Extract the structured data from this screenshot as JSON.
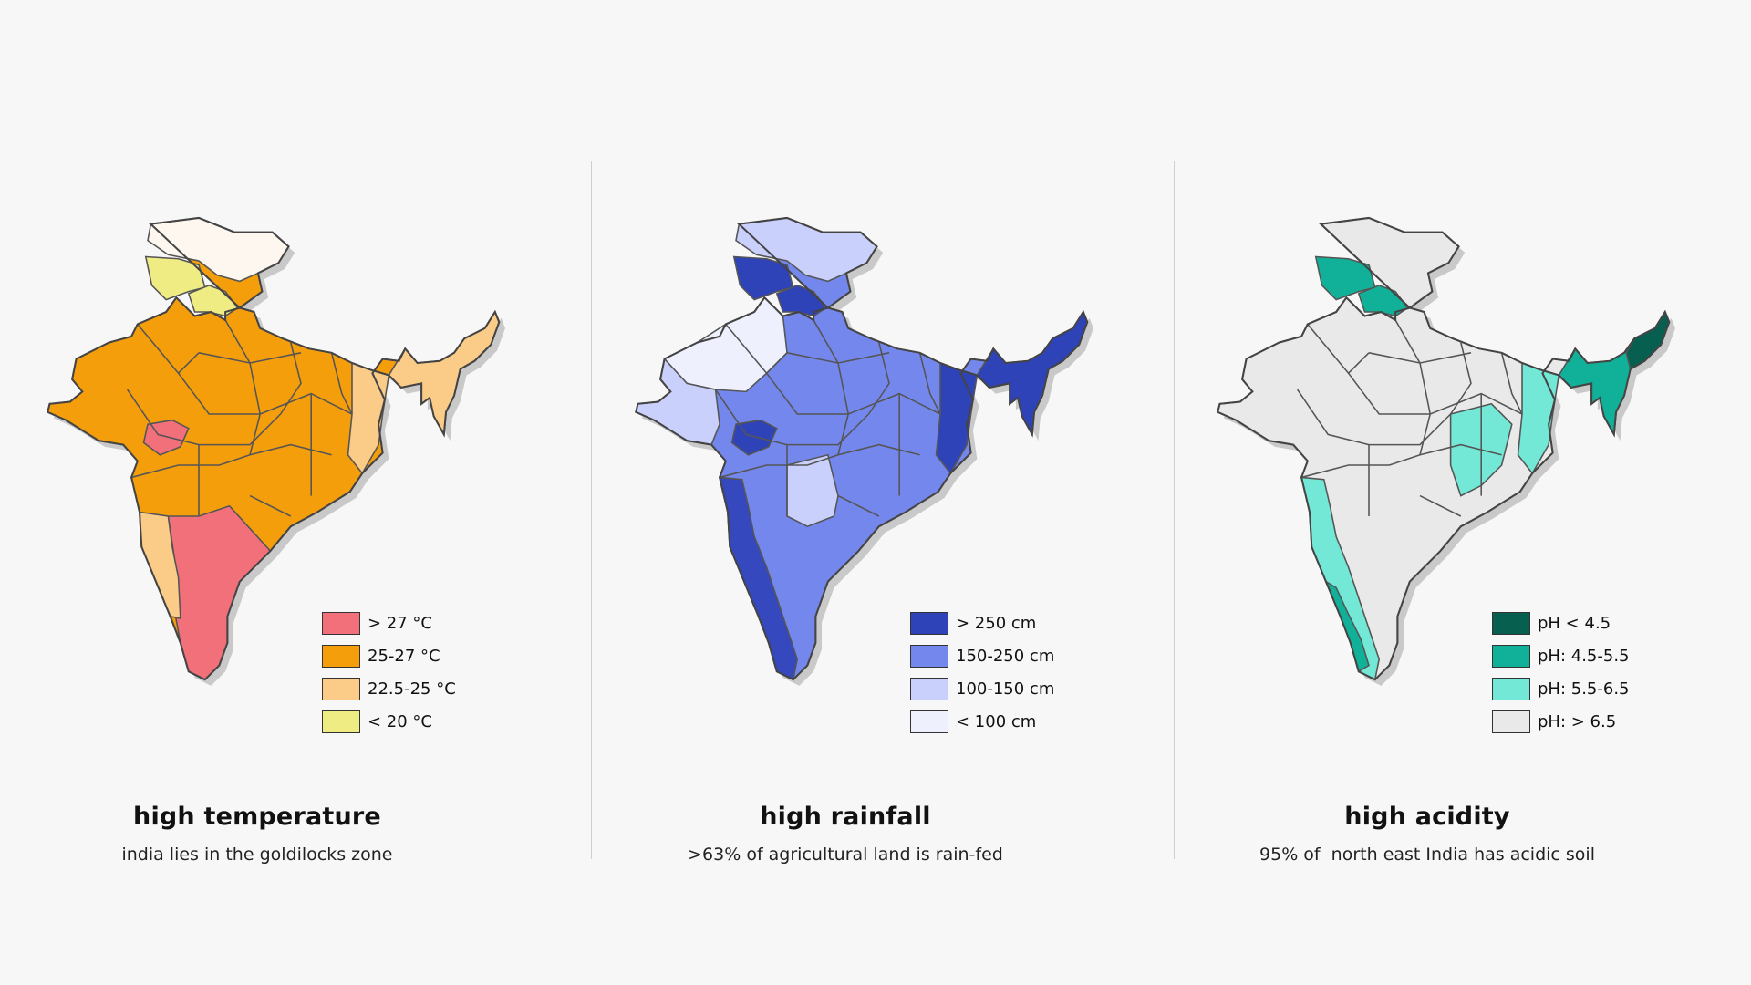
{
  "panels": [
    {
      "id": "temp",
      "title": "high temperature",
      "subtitle": "india lies in the goldilocks zone",
      "legend": [
        {
          "label": "> 27 °C",
          "color": "#f2707a"
        },
        {
          "label": "25-27 °C",
          "color": "#f59e0b"
        },
        {
          "label": "22.5-25 °C",
          "color": "#fbcb88"
        },
        {
          "label": "< 20 °C",
          "color": "#efec84"
        }
      ],
      "default_color": "#f59e0b",
      "regions": {
        "north": "#fdf7ef",
        "north2": "#efec84",
        "north3": "#efec84",
        "northeast": "#fbcb88",
        "south": "#f2707a",
        "southwest": "#fbcb88",
        "central_spot": "#f2707a",
        "east_strip": "#fbcb88"
      }
    },
    {
      "id": "rain",
      "title": "high rainfall",
      "subtitle": ">63% of agricultural land is rain-fed",
      "legend": [
        {
          "label": "> 250 cm",
          "color": "#2f43b8"
        },
        {
          "label": "150-250 cm",
          "color": "#7487ec"
        },
        {
          "label": "100-150 cm",
          "color": "#c9d0fb"
        },
        {
          "label": "< 100 cm",
          "color": "#eef0fd"
        }
      ],
      "default_color": "#7487ec",
      "regions": {
        "north": "#c9d0fb",
        "north2": "#2f43b8",
        "north3": "#2f43b8",
        "northeast": "#2f43b8",
        "west": "#eef0fd",
        "gujarat": "#c9d0fb",
        "westcoast": "#3548bd",
        "deccan": "#c9d0fb",
        "central_spot": "#2f43b8",
        "east_strip": "#2f43b8"
      }
    },
    {
      "id": "acid",
      "title": "high acidity",
      "subtitle": "95% of  north east India has acidic soil",
      "legend": [
        {
          "label": "pH < 4.5",
          "color": "#07604f"
        },
        {
          "label": "pH: 4.5-5.5",
          "color": "#11b199"
        },
        {
          "label": "pH: 5.5-6.5",
          "color": "#73e8d6"
        },
        {
          "label": "pH: > 6.5",
          "color": "#e9e9e9"
        }
      ],
      "default_color": "#e9e9e9",
      "regions": {
        "north2": "#11b199",
        "north3": "#11b199",
        "northeast": "#11b199",
        "ne_tip": "#07604f",
        "westcoast": "#73e8d6",
        "southwest_tip": "#11b199",
        "east_strip": "#73e8d6",
        "jharkhand": "#73e8d6"
      }
    }
  ]
}
